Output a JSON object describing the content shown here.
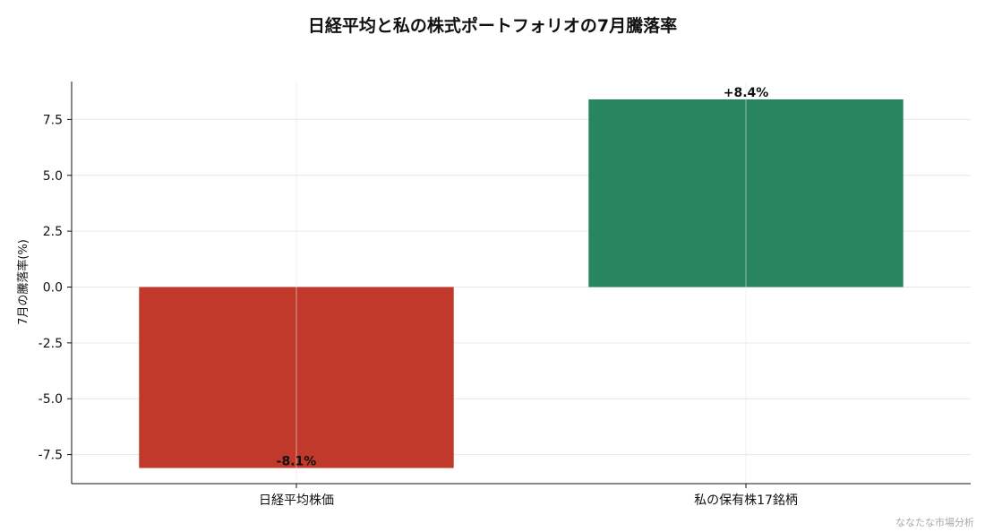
{
  "chart_data": {
    "type": "bar",
    "title": "日経平均と私の株式ポートフォリオの7月騰落率",
    "ylabel": "7月の騰落率(%)",
    "xlabel": "",
    "categories": [
      "日経平均株価",
      "私の保有株17銘柄"
    ],
    "values": [
      -8.1,
      8.4
    ],
    "data_labels": [
      "-8.1%",
      "+8.4%"
    ],
    "colors": [
      "#c0392b",
      "#27865f"
    ],
    "ylim": [
      -8.8,
      9.2
    ],
    "yticks": [
      -7.5,
      -5.0,
      -2.5,
      0.0,
      2.5,
      5.0,
      7.5
    ],
    "ytick_labels": [
      "-7.5",
      "-5.0",
      "-2.5",
      "0.0",
      "2.5",
      "5.0",
      "7.5"
    ],
    "grid": true,
    "legend": "none"
  },
  "footer": {
    "credit": "ななたな市場分析"
  }
}
